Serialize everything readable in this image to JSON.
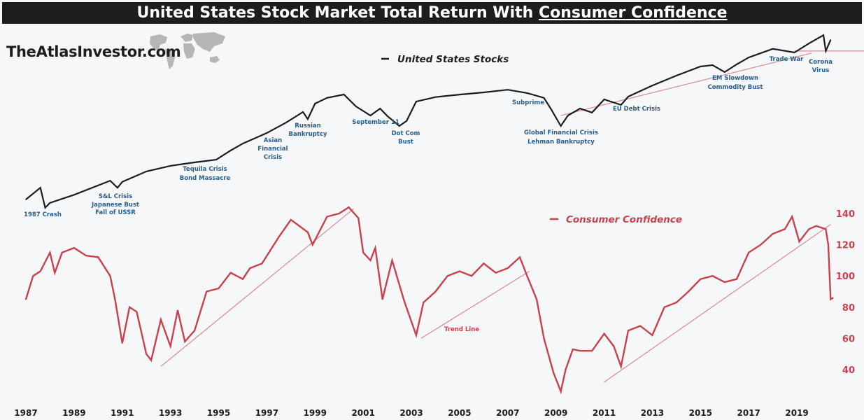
{
  "title": {
    "prefix": "United States Stock Market Total Return With ",
    "underlined": "Consumer Confidence"
  },
  "logo_text": "TheAtlasInvestor.com",
  "colors": {
    "stocks": "#1d1d1d",
    "confidence": "#c8414b",
    "trend": "#d98a92",
    "annotation": "#2b5d8a",
    "title_bg": "#1d1d1d"
  },
  "chart_data": [
    {
      "type": "line",
      "title": "",
      "series": [
        {
          "name": "United States Stocks",
          "x": [
            1987.0,
            1987.6,
            1987.8,
            1988,
            1989,
            1990.5,
            1990.8,
            1991,
            1992,
            1993,
            1994,
            1994.9,
            1995.5,
            1996,
            1997,
            1997.8,
            1998.5,
            1998.7,
            1999,
            1999.5,
            2000.2,
            2000.7,
            2001.3,
            2001.7,
            2002,
            2002.5,
            2002.8,
            2003.2,
            2004,
            2005,
            2006,
            2007,
            2007.8,
            2008.5,
            2008.8,
            2009.2,
            2009.5,
            2010,
            2010.5,
            2011,
            2011.7,
            2012,
            2013,
            2014,
            2015,
            2015.5,
            2016,
            2016.5,
            2017,
            2018,
            2018.9,
            2019.5,
            2020.1,
            2020.2,
            2020.4
          ],
          "values": [
            100,
            124,
            86,
            94,
            109,
            141,
            124,
            138,
            167,
            185,
            197,
            207,
            245,
            278,
            337,
            408,
            495,
            435,
            577,
            641,
            681,
            548,
            464,
            527,
            460,
            383,
            420,
            599,
            650,
            680,
            708,
            743,
            700,
            641,
            520,
            383,
            464,
            527,
            490,
            623,
            563,
            656,
            802,
            962,
            1137,
            1166,
            1026,
            1181,
            1341,
            1569,
            1468,
            1732,
            2013,
            1509,
            1847
          ]
        }
      ],
      "y_scale": "log",
      "y_axis_shown": false,
      "trend_lines": [
        {
          "x": [
            2009.2,
            2019.6
          ],
          "values": [
            464,
            1450
          ]
        },
        {
          "x": [
            2018.9,
            2021.9
          ],
          "values": [
            1508,
            1508
          ]
        }
      ],
      "annotations": [
        "1987 Crash",
        "S&L Crisis",
        "Japanese Bust",
        "Fall of USSR",
        "Tequila Crisis",
        "Bond Massacre",
        "Asian",
        "Financial",
        "Crisis",
        "Russian",
        "Bankruptcy",
        "September 11",
        "Dot Com",
        "Bust",
        "Subprime",
        "Global Financial Crisis",
        "Lehman Bankruptcy",
        "EU Debt Crisis",
        "EM Slowdown",
        "Commodity Bust",
        "Trade War",
        "Corona",
        "Virus"
      ]
    },
    {
      "type": "line",
      "title": "",
      "series": [
        {
          "name": "Consumer Confidence",
          "x": [
            1987.0,
            1987.3,
            1987.6,
            1988,
            1988.2,
            1988.5,
            1989,
            1989.5,
            1990,
            1990.5,
            1990.7,
            1991.0,
            1991.3,
            1991.6,
            1992,
            1992.2,
            1992.6,
            1993,
            1993.3,
            1993.6,
            1994,
            1994.5,
            1995,
            1995.5,
            1996,
            1996.3,
            1996.8,
            1997.5,
            1998,
            1998.7,
            1998.9,
            1999.5,
            2000,
            2000.4,
            2000.8,
            2001,
            2001.3,
            2001.5,
            2001.8,
            2002.2,
            2002.7,
            2003.2,
            2003.5,
            2004,
            2004.5,
            2005,
            2005.5,
            2006,
            2006.5,
            2007,
            2007.5,
            2007.8,
            2008.2,
            2008.5,
            2008.9,
            2009.2,
            2009.4,
            2009.7,
            2010,
            2010.5,
            2011,
            2011.4,
            2011.7,
            2012,
            2012.5,
            2013,
            2013.5,
            2014,
            2014.5,
            2015,
            2015.5,
            2016,
            2016.5,
            2017,
            2017.5,
            2018,
            2018.5,
            2018.8,
            2019.1,
            2019.5,
            2019.8,
            2020.2,
            2020.3,
            2020.4,
            2020.5
          ],
          "values": [
            85,
            100,
            103,
            115,
            102,
            115,
            118,
            113,
            112,
            100,
            85,
            57,
            80,
            77,
            50,
            46,
            72,
            55,
            78,
            58,
            65,
            90,
            92,
            102,
            98,
            105,
            108,
            125,
            136,
            128,
            120,
            138,
            140,
            144,
            137,
            115,
            110,
            118,
            85,
            110,
            84,
            62,
            83,
            90,
            100,
            103,
            100,
            108,
            102,
            105,
            112,
            100,
            85,
            60,
            38,
            26,
            40,
            53,
            52,
            52,
            63,
            55,
            42,
            65,
            68,
            62,
            80,
            83,
            90,
            98,
            100,
            96,
            98,
            115,
            120,
            127,
            130,
            138,
            122,
            130,
            132,
            130,
            120,
            85,
            86
          ]
        }
      ],
      "y_scale": "linear",
      "ylim": [
        30,
        145
      ],
      "y_ticks": [
        40,
        60,
        80,
        100,
        120,
        140
      ],
      "y_axis_position": "right",
      "trend_lines": [
        {
          "x": [
            1992.6,
            2000.6
          ],
          "values": [
            42,
            143
          ]
        },
        {
          "x": [
            2003.4,
            2007.9
          ],
          "values": [
            60,
            103
          ]
        },
        {
          "x": [
            2011.0,
            2020.4
          ],
          "values": [
            32,
            133
          ]
        }
      ],
      "annotations": [
        "Trend Line"
      ]
    }
  ],
  "x_axis": {
    "ticks": [
      1987,
      1989,
      1991,
      1993,
      1995,
      1997,
      1999,
      2001,
      2003,
      2005,
      2007,
      2009,
      2011,
      2013,
      2015,
      2017,
      2019
    ],
    "range": [
      1987,
      2021.5
    ]
  },
  "legend": {
    "stocks": "United States Stocks",
    "confidence": "Consumer Confidence"
  },
  "grid": false
}
